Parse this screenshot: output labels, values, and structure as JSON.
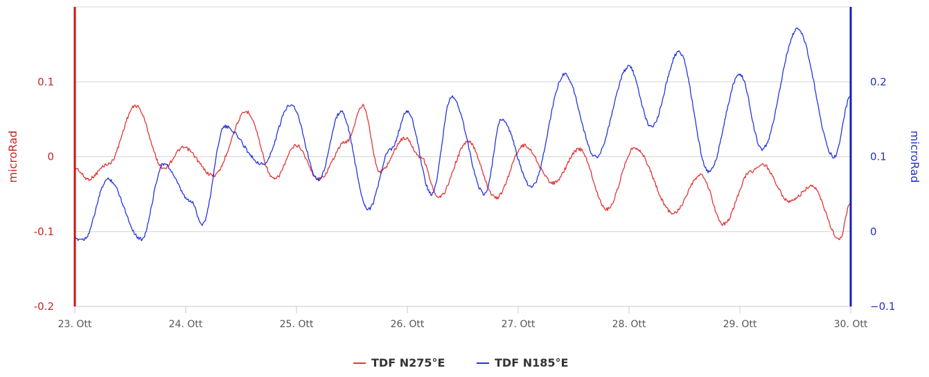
{
  "chart_data": {
    "type": "line",
    "x_axis": {
      "ticks": [
        "23. Ott",
        "24. Ott",
        "25. Ott",
        "26. Ott",
        "27. Ott",
        "28. Ott",
        "29. Ott",
        "30. Ott"
      ],
      "range_days": [
        23,
        30
      ]
    },
    "y_left": {
      "label": "microRad",
      "range": [
        -0.2,
        0.2
      ],
      "ticks": [
        {
          "value": -0.2,
          "label": "-0.2"
        },
        {
          "value": -0.1,
          "label": "-0.1"
        },
        {
          "value": 0,
          "label": "0"
        },
        {
          "value": 0.1,
          "label": "0.1"
        }
      ],
      "color": "#cc1111"
    },
    "y_right": {
      "label": "microRad",
      "range": [
        -0.1,
        0.3
      ],
      "ticks": [
        {
          "value": -0.1,
          "label": "−0.1"
        },
        {
          "value": 0,
          "label": "0"
        },
        {
          "value": 0.1,
          "label": "0.1"
        },
        {
          "value": 0.2,
          "label": "0.2"
        }
      ],
      "color": "#1122bb"
    },
    "grid": true,
    "legend": {
      "position": "bottom-center"
    },
    "series": [
      {
        "name": "TDF N275°E",
        "axis": "left",
        "color": "#e03535",
        "points": [
          [
            23.0,
            -0.015
          ],
          [
            23.12,
            -0.03
          ],
          [
            23.3,
            -0.01
          ],
          [
            23.55,
            0.068
          ],
          [
            23.8,
            -0.015
          ],
          [
            23.98,
            0.012
          ],
          [
            24.25,
            -0.025
          ],
          [
            24.55,
            0.06
          ],
          [
            24.8,
            -0.03
          ],
          [
            25.0,
            0.015
          ],
          [
            25.2,
            -0.03
          ],
          [
            25.45,
            0.02
          ],
          [
            25.6,
            0.068
          ],
          [
            25.75,
            -0.02
          ],
          [
            25.98,
            0.025
          ],
          [
            26.12,
            0.0
          ],
          [
            26.28,
            -0.055
          ],
          [
            26.55,
            0.02
          ],
          [
            26.8,
            -0.055
          ],
          [
            27.05,
            0.015
          ],
          [
            27.32,
            -0.035
          ],
          [
            27.55,
            0.01
          ],
          [
            27.8,
            -0.07
          ],
          [
            28.05,
            0.012
          ],
          [
            28.4,
            -0.075
          ],
          [
            28.65,
            -0.025
          ],
          [
            28.85,
            -0.09
          ],
          [
            29.1,
            -0.02
          ],
          [
            29.2,
            -0.01
          ],
          [
            29.45,
            -0.06
          ],
          [
            29.65,
            -0.04
          ],
          [
            29.9,
            -0.11
          ],
          [
            30.0,
            -0.06
          ]
        ]
      },
      {
        "name": "TDF N185°E",
        "axis": "right",
        "color": "#2233dd",
        "points": [
          [
            23.0,
            -0.01
          ],
          [
            23.08,
            -0.01
          ],
          [
            23.3,
            0.07
          ],
          [
            23.6,
            -0.01
          ],
          [
            23.8,
            0.09
          ],
          [
            24.05,
            0.04
          ],
          [
            24.15,
            0.01
          ],
          [
            24.35,
            0.14
          ],
          [
            24.7,
            0.09
          ],
          [
            24.95,
            0.17
          ],
          [
            25.2,
            0.07
          ],
          [
            25.4,
            0.16
          ],
          [
            25.65,
            0.03
          ],
          [
            25.85,
            0.11
          ],
          [
            26.0,
            0.16
          ],
          [
            26.22,
            0.05
          ],
          [
            26.4,
            0.18
          ],
          [
            26.7,
            0.05
          ],
          [
            26.85,
            0.15
          ],
          [
            27.12,
            0.06
          ],
          [
            27.42,
            0.21
          ],
          [
            27.7,
            0.1
          ],
          [
            28.0,
            0.22
          ],
          [
            28.2,
            0.14
          ],
          [
            28.45,
            0.24
          ],
          [
            28.72,
            0.08
          ],
          [
            29.0,
            0.21
          ],
          [
            29.2,
            0.11
          ],
          [
            29.52,
            0.27
          ],
          [
            29.85,
            0.1
          ],
          [
            30.0,
            0.18
          ]
        ]
      }
    ]
  }
}
